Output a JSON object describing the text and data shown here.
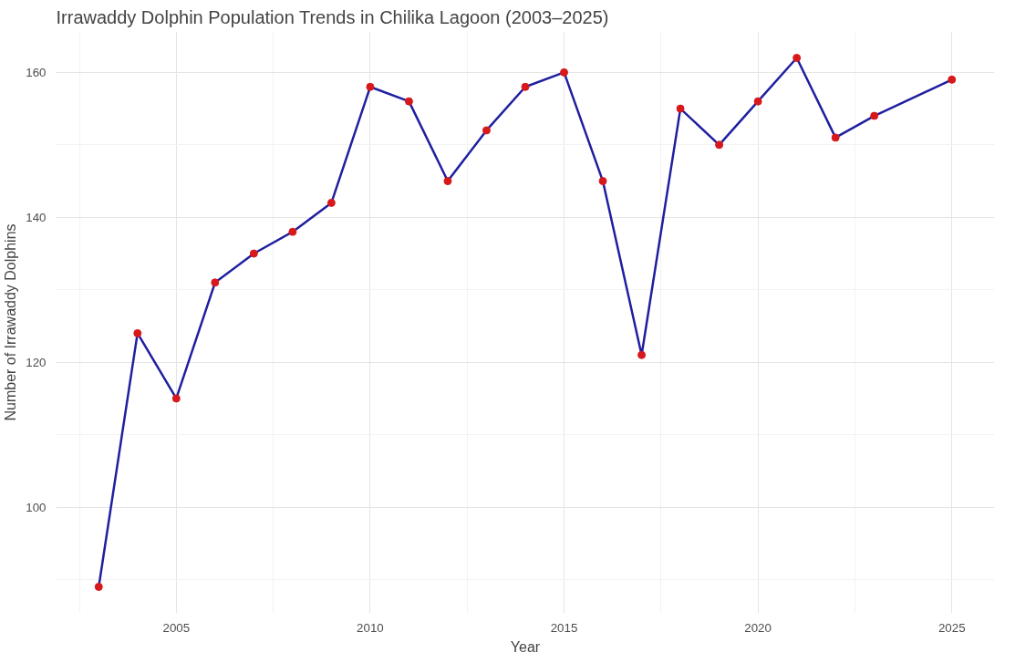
{
  "chart_data": {
    "type": "line",
    "title": "Irrawaddy Dolphin Population Trends in Chilika Lagoon (2003–2025)",
    "xlabel": "Year",
    "ylabel": "Number of Irrawaddy Dolphins",
    "x": [
      2003,
      2004,
      2005,
      2006,
      2007,
      2008,
      2009,
      2010,
      2011,
      2012,
      2013,
      2014,
      2015,
      2016,
      2017,
      2018,
      2019,
      2020,
      2021,
      2022,
      2023,
      2025
    ],
    "series": [
      {
        "marker": "none",
        "color": "#1f1fa0",
        "values": [
          89,
          124,
          115,
          131,
          135,
          138,
          142,
          158,
          156,
          145,
          152,
          158,
          160,
          145,
          121,
          155,
          150,
          156,
          162,
          151,
          154,
          159
        ]
      },
      {
        "type": "scatter",
        "color": "#d7191c",
        "values": [
          89,
          124,
          115,
          131,
          135,
          138,
          142,
          158,
          156,
          145,
          152,
          158,
          160,
          145,
          121,
          155,
          150,
          156,
          162,
          151,
          154,
          159
        ]
      }
    ],
    "xlim": [
      2001.9,
      2026.1
    ],
    "ylim": [
      85.35,
      165.65
    ],
    "xticks": [
      2005,
      2010,
      2015,
      2020,
      2025
    ],
    "yticks": [
      100,
      120,
      140,
      160
    ],
    "grid": true,
    "marker": "circle",
    "line_style": "solid"
  }
}
